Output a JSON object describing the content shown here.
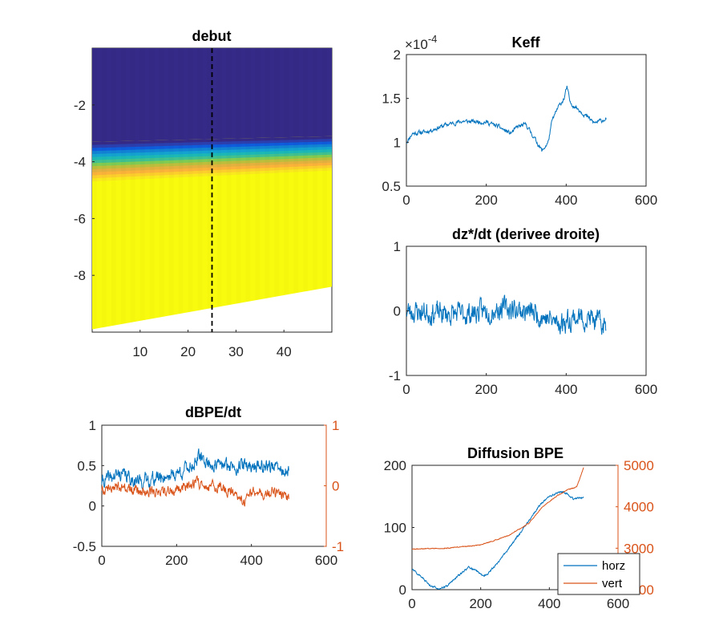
{
  "colors": {
    "series1": "#0072bd",
    "series2": "#d95319",
    "axis": "#262626",
    "dark": "#352a87",
    "mid_blue": "#0f5cdd",
    "cyan": "#14b5ca",
    "green": "#80cc53",
    "orange": "#fbb33a",
    "yellow": "#f9fb0e"
  },
  "chart_data": [
    {
      "id": "debut",
      "type": "heatmap",
      "title": "debut",
      "xlim": [
        0,
        50
      ],
      "ylim": [
        -10,
        0
      ],
      "x_ticks": [
        "10",
        "20",
        "30",
        "40"
      ],
      "x_tick_values": [
        10,
        20,
        30,
        40
      ],
      "y_ticks": [
        "-2",
        "-4",
        "-6",
        "-8"
      ],
      "y_tick_values": [
        -2,
        -4,
        -6,
        -8
      ],
      "dashed_line_x": 25,
      "interface_top": [
        -3.3,
        -3.1
      ],
      "interface_bottom": [
        -4.8,
        -4.4
      ],
      "bottom_boundary": [
        -9.9,
        -8.4
      ]
    },
    {
      "id": "keff",
      "type": "line",
      "title": "Keff",
      "exponent_label": "×10",
      "exponent_sup": "-4",
      "xlim": [
        0,
        600
      ],
      "ylim": [
        0.5,
        2
      ],
      "x_ticks": [
        "0",
        "200",
        "400",
        "600"
      ],
      "x_tick_values": [
        0,
        200,
        400,
        600
      ],
      "y_ticks": [
        "0.5",
        "1",
        "1.5",
        "2"
      ],
      "y_tick_values": [
        0.5,
        1,
        1.5,
        2
      ],
      "series": [
        {
          "x_range": [
            0,
            500
          ],
          "noise": 0.02,
          "keypoints": [
            [
              0,
              1.0
            ],
            [
              15,
              1.1
            ],
            [
              50,
              1.12
            ],
            [
              100,
              1.2
            ],
            [
              140,
              1.24
            ],
            [
              200,
              1.23
            ],
            [
              230,
              1.18
            ],
            [
              260,
              1.1
            ],
            [
              280,
              1.18
            ],
            [
              300,
              1.2
            ],
            [
              320,
              1.05
            ],
            [
              340,
              0.9
            ],
            [
              355,
              1.0
            ],
            [
              365,
              1.25
            ],
            [
              380,
              1.4
            ],
            [
              395,
              1.5
            ],
            [
              402,
              1.63
            ],
            [
              410,
              1.45
            ],
            [
              430,
              1.38
            ],
            [
              450,
              1.3
            ],
            [
              470,
              1.22
            ],
            [
              490,
              1.25
            ],
            [
              500,
              1.27
            ]
          ]
        }
      ]
    },
    {
      "id": "dzdt",
      "type": "line",
      "title": "dz*/dt (derivee droite)",
      "xlim": [
        0,
        600
      ],
      "ylim": [
        -1,
        1
      ],
      "x_ticks": [
        "0",
        "200",
        "400",
        "600"
      ],
      "x_tick_values": [
        0,
        200,
        400,
        600
      ],
      "y_ticks": [
        "-1",
        "0",
        "1"
      ],
      "y_tick_values": [
        -1,
        0,
        1
      ],
      "series": [
        {
          "x_range": [
            0,
            500
          ],
          "noise": 0.14,
          "keypoints": [
            [
              0,
              0.0
            ],
            [
              50,
              -0.02
            ],
            [
              100,
              -0.05
            ],
            [
              150,
              -0.05
            ],
            [
              200,
              0.0
            ],
            [
              240,
              0.05
            ],
            [
              280,
              0.02
            ],
            [
              330,
              -0.05
            ],
            [
              380,
              -0.2
            ],
            [
              420,
              -0.1
            ],
            [
              460,
              -0.12
            ],
            [
              500,
              -0.25
            ]
          ]
        }
      ]
    },
    {
      "id": "dbpe",
      "type": "line",
      "title": "dBPE/dt",
      "xlim": [
        0,
        600
      ],
      "ylim": [
        -0.5,
        1
      ],
      "y2lim": [
        -1,
        1
      ],
      "x_ticks": [
        "0",
        "200",
        "400",
        "600"
      ],
      "x_tick_values": [
        0,
        200,
        400,
        600
      ],
      "y_ticks": [
        "-0.5",
        "0",
        "0.5",
        "1"
      ],
      "y_tick_values": [
        -0.5,
        0,
        0.5,
        1
      ],
      "y2_ticks": [
        "-1",
        "0",
        "1"
      ],
      "y2_tick_values": [
        -1,
        0,
        1
      ],
      "series": [
        {
          "axis": "left",
          "x_range": [
            0,
            500
          ],
          "noise": 0.07,
          "keypoints": [
            [
              0,
              0.3
            ],
            [
              50,
              0.4
            ],
            [
              100,
              0.3
            ],
            [
              150,
              0.35
            ],
            [
              200,
              0.4
            ],
            [
              240,
              0.5
            ],
            [
              260,
              0.6
            ],
            [
              300,
              0.5
            ],
            [
              350,
              0.5
            ],
            [
              400,
              0.5
            ],
            [
              450,
              0.5
            ],
            [
              500,
              0.4
            ]
          ]
        },
        {
          "axis": "right",
          "x_range": [
            0,
            500
          ],
          "noise": 0.07,
          "keypoints": [
            [
              0,
              -0.05
            ],
            [
              50,
              0.0
            ],
            [
              100,
              -0.1
            ],
            [
              150,
              -0.1
            ],
            [
              200,
              -0.05
            ],
            [
              260,
              0.05
            ],
            [
              300,
              0.0
            ],
            [
              350,
              -0.1
            ],
            [
              380,
              -0.3
            ],
            [
              400,
              -0.1
            ],
            [
              450,
              -0.1
            ],
            [
              500,
              -0.2
            ]
          ]
        }
      ]
    },
    {
      "id": "diffusion",
      "type": "line",
      "title": "Diffusion BPE",
      "xlim": [
        0,
        600
      ],
      "ylim": [
        0,
        200
      ],
      "y2lim": [
        2000,
        5000
      ],
      "x_ticks": [
        "0",
        "200",
        "400",
        "600"
      ],
      "x_tick_values": [
        0,
        200,
        400,
        600
      ],
      "y_ticks": [
        "0",
        "100",
        "200"
      ],
      "y_tick_values": [
        0,
        100,
        200
      ],
      "y2_ticks": [
        "2000",
        "3000",
        "4000",
        "5000"
      ],
      "y2_tick_values": [
        2000,
        3000,
        4000,
        5000
      ],
      "legend": [
        "horz",
        "vert"
      ],
      "legend_placement": "bottom-right",
      "series": [
        {
          "name": "horz",
          "axis": "left",
          "x_range": [
            0,
            500
          ],
          "noise": 1.2,
          "keypoints": [
            [
              0,
              33
            ],
            [
              25,
              22
            ],
            [
              50,
              8
            ],
            [
              75,
              2
            ],
            [
              100,
              5
            ],
            [
              130,
              20
            ],
            [
              165,
              36
            ],
            [
              190,
              30
            ],
            [
              205,
              22
            ],
            [
              220,
              25
            ],
            [
              260,
              50
            ],
            [
              300,
              80
            ],
            [
              340,
              110
            ],
            [
              370,
              135
            ],
            [
              400,
              150
            ],
            [
              430,
              158
            ],
            [
              450,
              155
            ],
            [
              470,
              146
            ],
            [
              500,
              148
            ]
          ]
        },
        {
          "name": "vert",
          "axis": "right",
          "x_range": [
            0,
            500
          ],
          "noise": 8,
          "keypoints": [
            [
              0,
              2980
            ],
            [
              100,
              3000
            ],
            [
              200,
              3080
            ],
            [
              280,
              3300
            ],
            [
              340,
              3600
            ],
            [
              380,
              4000
            ],
            [
              420,
              4250
            ],
            [
              450,
              4400
            ],
            [
              480,
              4480
            ],
            [
              500,
              4950
            ]
          ]
        }
      ]
    }
  ]
}
